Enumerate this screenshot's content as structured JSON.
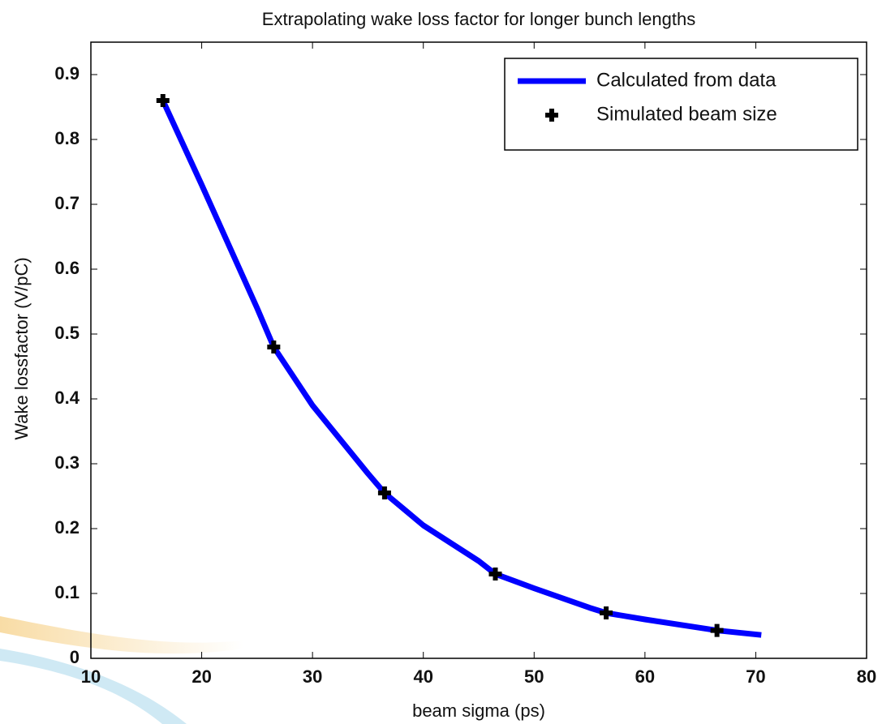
{
  "chart_data": {
    "type": "line",
    "title": "Extrapolating wake loss factor for longer bunch lengths",
    "x_label": "beam sigma (ps)",
    "y_label": "Wake lossfactor (V/pC)",
    "xlim": [
      10,
      80
    ],
    "ylim": [
      0,
      0.95
    ],
    "xticks": [
      10,
      20,
      30,
      40,
      50,
      60,
      70,
      80
    ],
    "yticks": [
      0,
      0.1,
      0.2,
      0.3,
      0.4,
      0.5,
      0.6,
      0.7,
      0.8,
      0.9
    ],
    "legend": "top-right",
    "series": [
      {
        "name": "Calculated from data",
        "color": "#0000ff",
        "style": "line",
        "x": [
          16.5,
          20,
          25,
          26.5,
          30,
          35,
          36.5,
          40,
          45,
          46.5,
          50,
          55,
          56.5,
          60,
          65,
          66.5,
          70.5
        ],
        "values": [
          0.86,
          0.73,
          0.54,
          0.48,
          0.39,
          0.285,
          0.255,
          0.205,
          0.15,
          0.13,
          0.108,
          0.078,
          0.07,
          0.06,
          0.047,
          0.043,
          0.036
        ]
      },
      {
        "name": "Simulated beam size",
        "color": "#000000",
        "style": "marker",
        "x": [
          16.5,
          26.5,
          36.5,
          46.5,
          56.5,
          66.5
        ],
        "values": [
          0.86,
          0.48,
          0.255,
          0.13,
          0.07,
          0.043
        ]
      }
    ]
  }
}
